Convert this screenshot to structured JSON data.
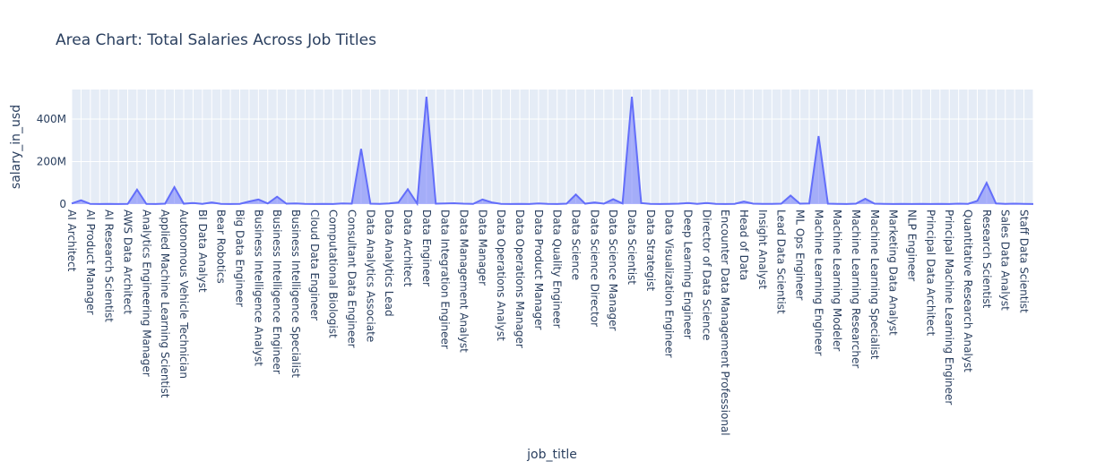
{
  "chart_data": {
    "type": "area",
    "title": "Area Chart: Total Salaries Across Job Titles",
    "xlabel": "job_title",
    "ylabel": "salary_in_usd",
    "categories": [
      "AI Architect",
      null,
      "AI Product Manager",
      null,
      "AI Research Scientist",
      null,
      "AWS Data Architect",
      null,
      "Analytics Engineering Manager",
      null,
      "Applied Machine Learning Scientist",
      null,
      "Autonomous Vehicle Technician",
      null,
      "BI Data Analyst",
      null,
      "Bear Robotics",
      null,
      "Big Data Engineer",
      null,
      "Business Intelligence Analyst",
      null,
      "Business Intelligence Engineer",
      null,
      "Business Intelligence Specialist",
      null,
      "Cloud Data Engineer",
      null,
      "Computational Biologist",
      null,
      "Consultant Data Engineer",
      null,
      "Data Analytics Associate",
      null,
      "Data Analytics Lead",
      null,
      "Data Architect",
      null,
      "Data Engineer",
      null,
      "Data Integration Engineer",
      null,
      "Data Management Analyst",
      null,
      "Data Manager",
      null,
      "Data Operations Analyst",
      null,
      "Data Operations Manager",
      null,
      "Data Product Manager",
      null,
      "Data Quality Engineer",
      null,
      "Data Science",
      null,
      "Data Science Director",
      null,
      "Data Science Manager",
      null,
      "Data Scientist",
      null,
      "Data Strategist",
      null,
      "Data Visualization Engineer",
      null,
      "Deep Learning Engineer",
      null,
      "Director of Data Science",
      null,
      "Encounter Data Management Professional",
      null,
      "Head of Data",
      null,
      "Insight Analyst",
      null,
      "Lead Data Scientist",
      null,
      "ML Ops Engineer",
      null,
      "Machine Learning Engineer",
      null,
      "Machine Learning Modeler",
      null,
      "Machine Learning Researcher",
      null,
      "Machine Learning Specialist",
      null,
      "Marketing Data Analyst",
      null,
      "NLP Engineer",
      null,
      "Principal Data Architect",
      null,
      "Principal Machine Learning Engineer",
      null,
      "Quantitative Research Analyst",
      null,
      "Research Scientist",
      null,
      "Sales Data Analyst",
      null,
      "Staff Data Scientist",
      null
    ],
    "series": [
      {
        "name": "salary_in_usd",
        "color": "#636efa",
        "values": [
          3000000,
          18000000,
          1000000,
          500000,
          1000000,
          500000,
          1000000,
          68000000,
          1000000,
          500000,
          2000000,
          80000000,
          2000000,
          5000000,
          1000000,
          8000000,
          1000000,
          500000,
          1000000,
          12000000,
          22000000,
          3000000,
          35000000,
          2000000,
          3000000,
          1000000,
          500000,
          1000000,
          500000,
          3000000,
          2000000,
          260000000,
          2000000,
          1000000,
          3000000,
          8000000,
          70000000,
          3000000,
          505000000,
          2000000,
          3000000,
          4000000,
          2000000,
          1000000,
          22000000,
          8000000,
          1000000,
          500000,
          1000000,
          500000,
          3000000,
          1000000,
          500000,
          2000000,
          45000000,
          2000000,
          8000000,
          2000000,
          23000000,
          3000000,
          505000000,
          5000000,
          1000000,
          500000,
          1000000,
          2000000,
          5000000,
          1000000,
          5000000,
          1000000,
          500000,
          1000000,
          12000000,
          2000000,
          1000000,
          1000000,
          2000000,
          40000000,
          2000000,
          3000000,
          320000000,
          2000000,
          1000000,
          500000,
          2000000,
          25000000,
          2000000,
          1000000,
          500000,
          1000000,
          500000,
          1000000,
          500000,
          1000000,
          500000,
          2000000,
          1000000,
          15000000,
          100000000,
          3000000,
          1000000,
          2000000,
          1000000,
          500000
        ]
      }
    ],
    "ylim": [
      0,
      539000000
    ],
    "yticks": [
      0,
      {
        "value": 200000000,
        "label": "200M"
      },
      {
        "value": 400000000,
        "label": "400M"
      }
    ],
    "grid": true
  }
}
